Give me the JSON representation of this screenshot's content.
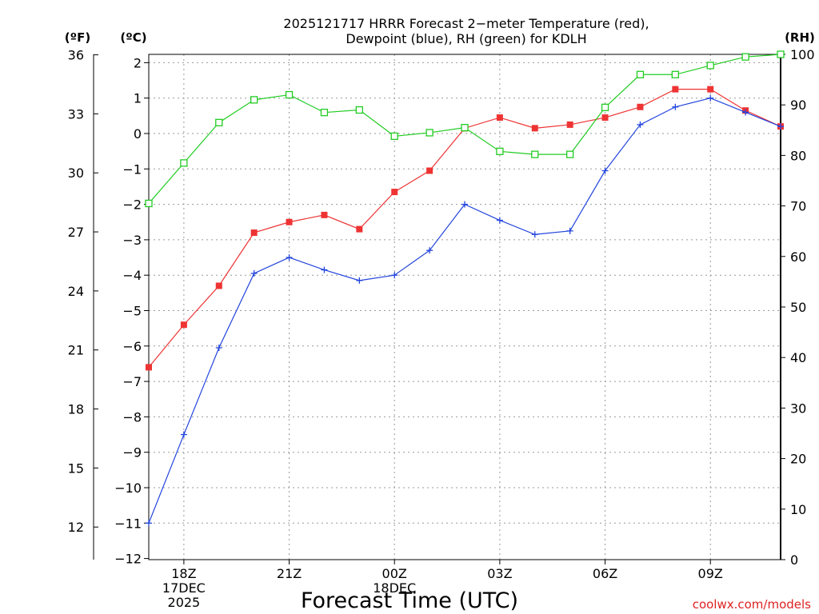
{
  "chart_data": {
    "type": "line",
    "title_line1": "2025121717 HRRR Forecast 2−meter Temperature (red),",
    "title_line2": "Dewpoint (blue), RH (green) for KDLH",
    "xlabel": "Forecast Time (UTC)",
    "credit": "coolwx.com/models",
    "left_outer_unit": "(ºF)",
    "left_inner_unit": "(ºC)",
    "right_unit": "(RH)",
    "x_hours": [
      17,
      18,
      19,
      20,
      21,
      22,
      23,
      24,
      25,
      26,
      27,
      28,
      29,
      30,
      31,
      32,
      33,
      34,
      35
    ],
    "x_range": [
      17,
      35
    ],
    "x_ticks": [
      {
        "hour": 18,
        "lines": [
          "18Z",
          "17DEC",
          "2025"
        ]
      },
      {
        "hour": 21,
        "lines": [
          "21Z"
        ]
      },
      {
        "hour": 24,
        "lines": [
          "00Z",
          "18DEC"
        ]
      },
      {
        "hour": 27,
        "lines": [
          "03Z"
        ]
      },
      {
        "hour": 30,
        "lines": [
          "06Z"
        ]
      },
      {
        "hour": 33,
        "lines": [
          "09Z"
        ]
      }
    ],
    "celsius_range": [
      -12,
      2.5
    ],
    "celsius_ticks": [
      "2",
      "1",
      "0",
      "−1",
      "−2",
      "−3",
      "−4",
      "−5",
      "−6",
      "−7",
      "−8",
      "−9",
      "−10",
      "−11",
      "−12"
    ],
    "fahrenheit_ticks": [
      "36",
      "33",
      "30",
      "27",
      "24",
      "21",
      "18",
      "15",
      "12"
    ],
    "rh_range": [
      0,
      100
    ],
    "rh_ticks": [
      "100",
      "90",
      "80",
      "70",
      "60",
      "50",
      "40",
      "30",
      "20",
      "10",
      "0"
    ],
    "series": [
      {
        "name": "Temperature",
        "unit": "C",
        "color": "#ee3333",
        "marker": "filled-square",
        "values": [
          -6.6,
          -5.4,
          -4.3,
          -2.8,
          -2.5,
          -2.3,
          -2.7,
          -1.65,
          -1.05,
          0.15,
          0.45,
          0.15,
          0.25,
          0.45,
          0.75,
          1.25,
          1.25,
          0.65,
          0.2
        ]
      },
      {
        "name": "Dewpoint",
        "unit": "C",
        "color": "#2244dd",
        "marker": "plus",
        "values": [
          -11.0,
          -8.5,
          -6.05,
          -3.95,
          -3.5,
          -3.85,
          -4.15,
          -4.0,
          -3.3,
          -2.0,
          -2.45,
          -2.85,
          -2.75,
          -1.05,
          0.25,
          0.75,
          1.0,
          0.6,
          0.2
        ]
      },
      {
        "name": "RH",
        "unit": "%",
        "color": "#22cc22",
        "marker": "open-square",
        "values": [
          70.5,
          78.5,
          86.5,
          91,
          92,
          88.5,
          89,
          83.8,
          84.5,
          85.5,
          80.8,
          80.2,
          80.2,
          89.5,
          96,
          96,
          97.8,
          99.5,
          100
        ]
      }
    ]
  }
}
